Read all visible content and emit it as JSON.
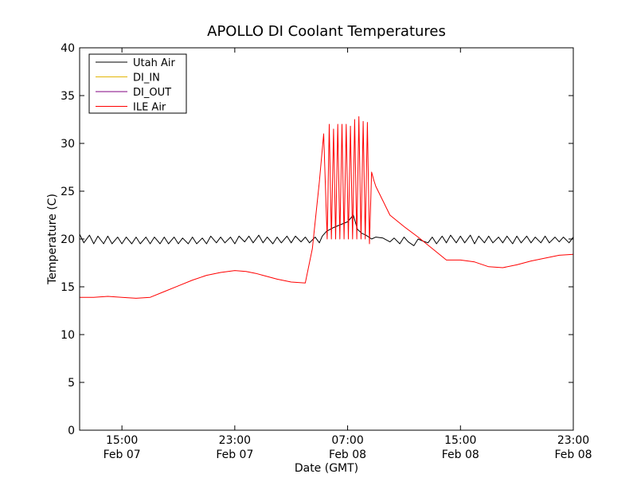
{
  "chart_data": {
    "type": "line",
    "title": "APOLLO DI Coolant Temperatures",
    "xlabel": "Date (GMT)",
    "ylabel": "Temperature (C)",
    "x_unit": "hours since Feb 07 12:00 GMT",
    "xlim": [
      0,
      35
    ],
    "ylim": [
      0,
      40
    ],
    "grid": false,
    "legend_location": "top-left",
    "y_ticks": [
      0,
      5,
      10,
      15,
      20,
      25,
      30,
      35,
      40
    ],
    "x_ticks": [
      {
        "x": 3,
        "time": "15:00",
        "date": "Feb 07"
      },
      {
        "x": 11,
        "time": "23:00",
        "date": "Feb 07"
      },
      {
        "x": 19,
        "time": "07:00",
        "date": "Feb 08"
      },
      {
        "x": 27,
        "time": "15:00",
        "date": "Feb 08"
      },
      {
        "x": 35,
        "time": "23:00",
        "date": "Feb 08"
      }
    ],
    "series": [
      {
        "name": "Utah Air",
        "color": "#000000",
        "x": [
          0.0,
          0.3,
          0.7,
          1.0,
          1.3,
          1.7,
          2.0,
          2.3,
          2.7,
          3.0,
          3.3,
          3.7,
          4.0,
          4.3,
          4.7,
          5.0,
          5.3,
          5.7,
          6.0,
          6.3,
          6.7,
          7.0,
          7.3,
          7.7,
          8.0,
          8.3,
          8.7,
          9.0,
          9.3,
          9.7,
          10.0,
          10.3,
          10.7,
          11.0,
          11.3,
          11.7,
          12.0,
          12.3,
          12.7,
          13.0,
          13.3,
          13.7,
          14.0,
          14.3,
          14.7,
          15.0,
          15.3,
          15.7,
          16.0,
          16.3,
          16.7,
          17.0,
          17.2,
          17.5,
          18.0,
          18.5,
          19.0,
          19.4,
          19.7,
          20.0,
          20.3,
          20.7,
          21.0,
          21.5,
          22.0,
          22.3,
          22.7,
          23.0,
          23.3,
          23.7,
          24.0,
          24.3,
          24.7,
          25.0,
          25.3,
          25.7,
          26.0,
          26.3,
          26.7,
          27.0,
          27.3,
          27.7,
          28.0,
          28.3,
          28.7,
          29.0,
          29.3,
          29.7,
          30.0,
          30.3,
          30.7,
          31.0,
          31.3,
          31.7,
          32.0,
          32.3,
          32.7,
          33.0,
          33.3,
          33.7,
          34.0,
          34.3,
          34.7,
          35.0
        ],
        "y": [
          20.5,
          19.6,
          20.4,
          19.5,
          20.3,
          19.5,
          20.3,
          19.5,
          20.2,
          19.5,
          20.2,
          19.5,
          20.2,
          19.5,
          20.2,
          19.5,
          20.2,
          19.5,
          20.2,
          19.5,
          20.2,
          19.5,
          20.1,
          19.5,
          20.2,
          19.5,
          20.1,
          19.5,
          20.3,
          19.6,
          20.2,
          19.6,
          20.2,
          19.5,
          20.3,
          19.7,
          20.3,
          19.6,
          20.4,
          19.6,
          20.2,
          19.5,
          20.2,
          19.6,
          20.3,
          19.6,
          20.3,
          19.7,
          20.2,
          19.6,
          20.2,
          19.6,
          20.3,
          20.8,
          21.2,
          21.5,
          21.8,
          22.5,
          21.0,
          20.6,
          20.4,
          20.0,
          20.2,
          20.1,
          19.7,
          20.1,
          19.5,
          20.2,
          19.7,
          19.3,
          20.0,
          19.8,
          19.6,
          20.2,
          19.5,
          20.3,
          19.6,
          20.4,
          19.6,
          20.3,
          19.6,
          20.4,
          19.5,
          20.3,
          19.6,
          20.3,
          19.6,
          20.2,
          19.6,
          20.3,
          19.5,
          20.3,
          19.6,
          20.3,
          19.6,
          20.2,
          19.6,
          20.3,
          19.6,
          20.2,
          19.7,
          20.2,
          19.6,
          20.2
        ]
      },
      {
        "name": "DI_IN",
        "color": "#e3b505",
        "x": [],
        "y": []
      },
      {
        "name": "DI_OUT",
        "color": "#800080",
        "x": [],
        "y": []
      },
      {
        "name": "ILE Air",
        "color": "#ff0000",
        "x": [
          0.0,
          1.0,
          2.0,
          3.0,
          4.0,
          5.0,
          6.0,
          7.0,
          8.0,
          9.0,
          10.0,
          11.0,
          11.8,
          12.5,
          13.0,
          14.0,
          15.0,
          16.0,
          16.5,
          17.0,
          17.3,
          17.55,
          17.7,
          17.85,
          18.0,
          18.15,
          18.3,
          18.45,
          18.6,
          18.75,
          18.9,
          19.05,
          19.2,
          19.35,
          19.5,
          19.65,
          19.8,
          19.95,
          20.1,
          20.25,
          20.4,
          20.55,
          20.7,
          20.85,
          21.0,
          21.5,
          22.0,
          23.0,
          24.0,
          25.0,
          26.0,
          27.0,
          28.0,
          29.0,
          30.0,
          31.0,
          32.0,
          33.0,
          34.0,
          35.0
        ],
        "y": [
          13.9,
          13.9,
          14.0,
          13.9,
          13.8,
          13.9,
          14.5,
          15.1,
          15.7,
          16.2,
          16.5,
          16.7,
          16.6,
          16.4,
          16.2,
          15.8,
          15.5,
          15.4,
          19.0,
          26.0,
          31.0,
          20.0,
          32.0,
          20.0,
          31.5,
          20.0,
          32.0,
          20.0,
          32.0,
          20.0,
          32.0,
          20.0,
          31.8,
          20.0,
          32.5,
          20.0,
          32.8,
          20.0,
          32.3,
          20.0,
          32.2,
          19.5,
          27.0,
          26.2,
          25.5,
          24.0,
          22.5,
          21.3,
          20.2,
          19.0,
          17.8,
          17.8,
          17.6,
          17.1,
          17.0,
          17.3,
          17.7,
          18.0,
          18.3,
          18.4
        ]
      }
    ]
  }
}
